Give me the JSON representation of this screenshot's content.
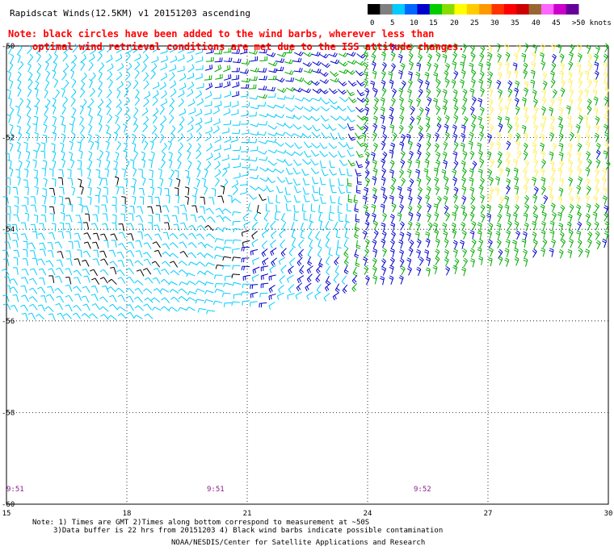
{
  "title": "Rapidscat Winds(12.5KM) v1 20151203 ascending",
  "note_lines": [
    "Note: black circles have been added to the wind barbs, wherever less than",
    "optimal wind retrieval conditions are met due to the ISS attitude changes."
  ],
  "colorbar": {
    "labels": [
      "0",
      "5",
      "10",
      "15",
      "20",
      "25",
      "30",
      "35",
      "40",
      "45",
      ">50 knots"
    ],
    "colors": [
      "#000000",
      "#7f7f7f",
      "#00ccff",
      "#0066ff",
      "#0000cc",
      "#00cc00",
      "#88dd00",
      "#ffff00",
      "#ffcc00",
      "#ff9900",
      "#ff3300",
      "#ff0000",
      "#cc0000",
      "#996633",
      "#ff66ff",
      "#cc00cc",
      "#660099"
    ]
  },
  "axes": {
    "x_ticks": [
      "15",
      "18",
      "21",
      "24",
      "27",
      "30"
    ],
    "y_ticks": [
      "-50",
      "-52",
      "-54",
      "-56",
      "-58",
      "-60"
    ],
    "x_range": [
      15,
      30
    ],
    "y_range": [
      -60,
      -50
    ]
  },
  "time_labels": [
    "9:51",
    "9:51",
    "9:52"
  ],
  "footer_lines": [
    "Note: 1) Times are GMT 2)Times along bottom correspond to measurement at ~50S",
    "3)Data buffer is 22 hrs from 20151203 4) Black wind barbs indicate possible contamination",
    "NOAA/NESDIS/Center for Satellite Applications and Research"
  ],
  "barb_colors": {
    "calm": "#000000",
    "light": "#00ccff",
    "moderate": "#0000cc",
    "fresh": "#00aa00",
    "strong": "#ffee55"
  }
}
